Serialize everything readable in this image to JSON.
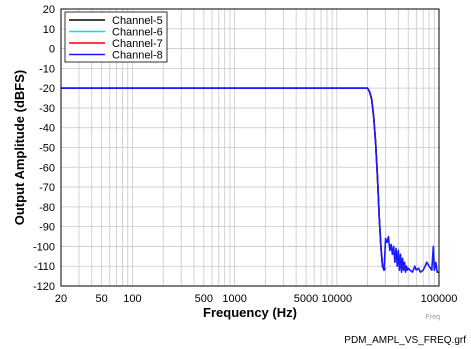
{
  "chart_data": {
    "type": "line",
    "title": "",
    "xlabel": "Frequency (Hz)",
    "ylabel": "Output Amplitude (dBFS)",
    "x_scale": "log",
    "xlim": [
      20,
      100000
    ],
    "ylim": [
      -120,
      20
    ],
    "grid": true,
    "legend_position": "top-left",
    "x_tick_labels": [
      "20",
      "50",
      "100",
      "500",
      "1000",
      "5000",
      "10000",
      "100000"
    ],
    "y_tick_labels": [
      "20",
      "10",
      "0",
      "-10",
      "-20",
      "-30",
      "-40",
      "-50",
      "-60",
      "-70",
      "-80",
      "-90",
      "-100",
      "-110",
      "-120"
    ],
    "corner_note": "Freq",
    "series": [
      {
        "name": "Channel-5",
        "color": "#000000",
        "x": [
          20,
          50,
          100,
          500,
          1000,
          5000,
          10000,
          18000,
          20000,
          21000,
          22000,
          23000,
          24000,
          25000,
          26000,
          27000,
          28000,
          29000,
          30000
        ],
        "y": [
          -20,
          -20,
          -20,
          -20,
          -20,
          -20,
          -20,
          -20,
          -20,
          -22,
          -26,
          -35,
          -48,
          -65,
          -85,
          -100,
          -110,
          -112,
          -111
        ]
      },
      {
        "name": "Channel-6",
        "color": "#00e5e5",
        "x": [
          20,
          50,
          100,
          500,
          1000,
          5000,
          10000,
          18000,
          20000,
          21000,
          22000,
          23000,
          24000,
          25000,
          26000,
          27000,
          28000,
          29000,
          30000
        ],
        "y": [
          -20,
          -20,
          -20,
          -20,
          -20,
          -20,
          -20,
          -20,
          -20,
          -22,
          -26,
          -35,
          -48,
          -65,
          -85,
          -100,
          -110,
          -112,
          -111
        ]
      },
      {
        "name": "Channel-7",
        "color": "#ff0000",
        "x": [
          20,
          50,
          100,
          500,
          1000,
          5000,
          10000,
          18000,
          20000,
          21000,
          22000,
          23000,
          24000,
          25000,
          26000,
          27000,
          28000,
          29000,
          30000
        ],
        "y": [
          -20,
          -20,
          -20,
          -20,
          -20,
          -20,
          -20,
          -20,
          -20,
          -22,
          -26,
          -35,
          -48,
          -65,
          -85,
          -100,
          -110,
          -112,
          -111
        ]
      },
      {
        "name": "Channel-8",
        "color": "#1a1aff",
        "x": [
          20,
          50,
          100,
          500,
          1000,
          5000,
          10000,
          18000,
          20000,
          21000,
          22000,
          23000,
          24000,
          25000,
          26000,
          27000,
          28000,
          29000,
          30000,
          31000,
          32000,
          33000,
          34000,
          35000,
          36000,
          37000,
          38000,
          39000,
          40000,
          41000,
          42000,
          43000,
          44000,
          45000,
          46000,
          47000,
          48000,
          49000,
          50000,
          52000,
          55000,
          58000,
          60000,
          63000,
          66000,
          70000,
          73000,
          76000,
          80000,
          85000,
          88000,
          90000,
          93000,
          96000,
          100000
        ],
        "y": [
          -20,
          -20,
          -20,
          -20,
          -20,
          -20,
          -20,
          -20,
          -20,
          -22,
          -26,
          -35,
          -48,
          -65,
          -85,
          -100,
          -110,
          -112,
          -96,
          -98,
          -95,
          -102,
          -99,
          -104,
          -100,
          -108,
          -101,
          -110,
          -102,
          -112,
          -104,
          -113,
          -106,
          -112,
          -108,
          -113,
          -110,
          -112,
          -111,
          -112,
          -113,
          -110,
          -112,
          -111,
          -113,
          -112,
          -110,
          -108,
          -110,
          -112,
          -100,
          -112,
          -108,
          -113,
          -113
        ]
      }
    ]
  },
  "footer": {
    "filename": "PDM_AMPL_VS_FREQ.grf"
  }
}
